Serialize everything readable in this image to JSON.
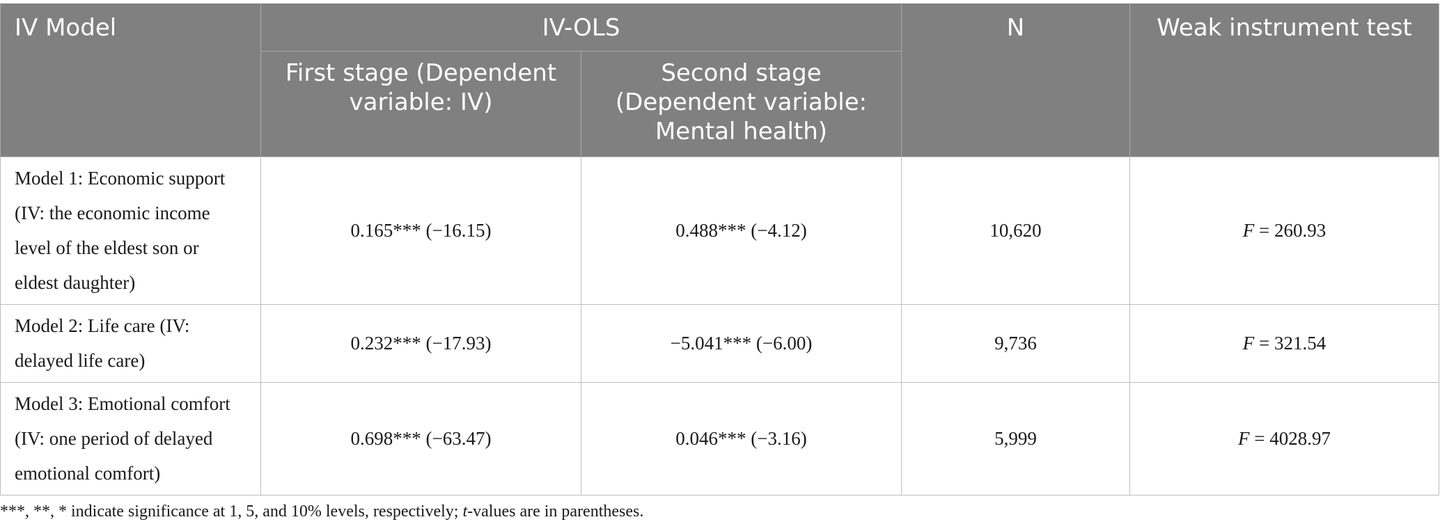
{
  "header": {
    "col_model": "IV Model",
    "col_group": "IV-OLS",
    "col_first_stage": "First stage (Dependent variable: IV)",
    "col_second_stage": "Second stage (Dependent variable: Mental health)",
    "col_n": "N",
    "col_weak": "Weak instrument test"
  },
  "rows": [
    {
      "model": "Model 1: Economic support (IV: the economic income level of the eldest son or eldest daughter)",
      "first_stage": "0.165*** (−16.15)",
      "second_stage": "0.488*** (−4.12)",
      "n": "10,620",
      "f_label": "F",
      "f_value": " = 260.93"
    },
    {
      "model": "Model 2: Life care (IV: delayed life care)",
      "first_stage": "0.232*** (−17.93)",
      "second_stage": "−5.041*** (−6.00)",
      "n": "9,736",
      "f_label": "F",
      "f_value": " = 321.54"
    },
    {
      "model": "Model 3: Emotional comfort (IV: one period of delayed emotional comfort)",
      "first_stage": "0.698*** (−63.47)",
      "second_stage": "0.046*** (−3.16)",
      "n": "5,999",
      "f_label": "F",
      "f_value": " = 4028.97"
    }
  ],
  "footnote": {
    "part1": "***, **, * indicate significance at 1, 5, and 10% levels, respectively; ",
    "t_label": "t",
    "part2": "-values are in parentheses."
  }
}
